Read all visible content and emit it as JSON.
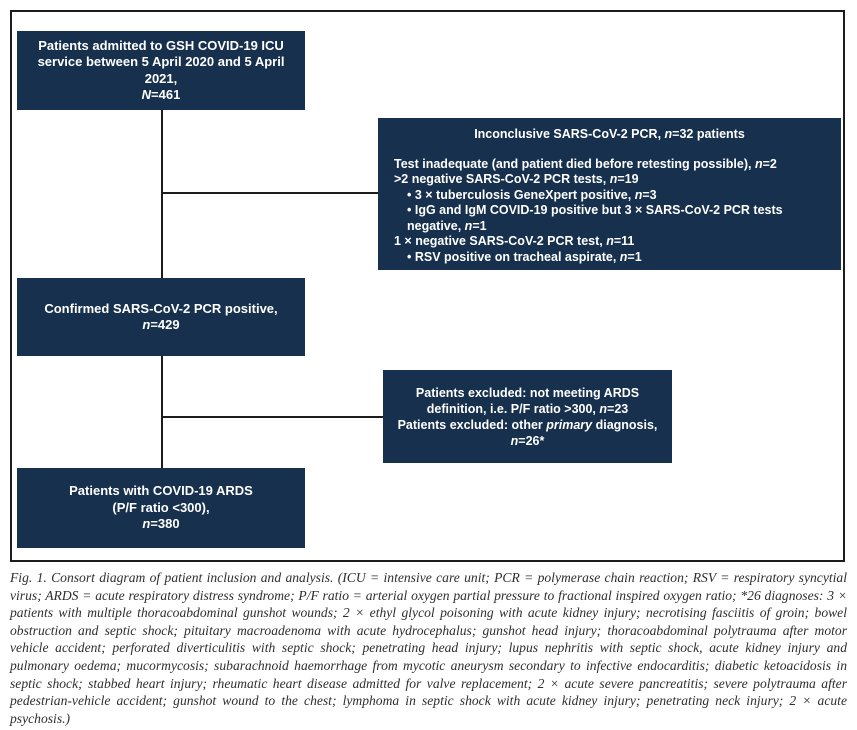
{
  "colors": {
    "box_fill": "#16304d",
    "box_text": "#ffffff",
    "line_color": "#1c1c1c",
    "caption_text": "#2e2e2e"
  },
  "flowchart": {
    "box_admitted": {
      "text_html": "Patients admitted to GSH COVID-19 ICU<br>service between 5 April 2020 and 5 April 2021,<br><i>N</i>=461"
    },
    "box_inconclusive": {
      "title_html": "Inconclusive SARS-CoV-2 PCR, <i>n</i>=32 patients",
      "lines_html": [
        "Test inadequate (and patient died before retesting possible), <i>n</i>=2",
        ">2 negative SARS-CoV-2 PCR tests, <i>n</i>=19",
        "• 3 × tuberculosis GeneXpert positive, <i>n</i>=3",
        "• IgG and IgM COVID-19 positive but 3 × SARS-CoV-2 PCR tests negative, <i>n</i>=1",
        "1 × negative SARS-CoV-2 PCR test, <i>n</i>=11",
        "• RSV positive on tracheal aspirate, <i>n</i>=1"
      ]
    },
    "box_confirmed": {
      "text_html": "Confirmed SARS-CoV-2 PCR positive,<br><i>n</i>=429"
    },
    "box_excluded": {
      "text_html": "Patients excluded: not meeting ARDS<br>definition, i.e. P/F ratio >300, <i>n</i>=23<br>Patients excluded: other <i>primary</i> diagnosis,<br><i>n</i>=26*"
    },
    "box_ards": {
      "text_html": "Patients with COVID-19 ARDS<br>(P/F ratio <300),<br><i>n</i>=380"
    }
  },
  "caption": {
    "text": "Fig. 1. Consort diagram of patient inclusion and analysis. (ICU = intensive care unit; PCR = polymerase chain reaction; RSV = respiratory syncytial virus; ARDS = acute respiratory distress syndrome; P/F ratio = arterial oxygen partial pressure to fractional inspired oxygen ratio; *26 diagnoses: 3 × patients with multiple thoracoabdominal gunshot wounds; 2 × ethyl glycol poisoning with acute kidney injury; necrotising fasciitis of groin; bowel obstruction and septic shock; pituitary macroadenoma with acute hydrocephalus; gunshot head injury; thoracoabdominal polytrauma after motor vehicle accident; perforated diverticulitis with septic shock; penetrating head injury; lupus nephritis with septic shock, acute kidney injury and pulmonary oedema; mucormycosis; subarachnoid haemorrhage from mycotic aneurysm secondary to infective endocarditis; diabetic ketoacidosis in septic shock; stabbed heart injury; rheumatic heart disease admitted for valve replacement; 2 × acute severe pancreatitis; severe polytrauma after pedestrian-vehicle accident; gunshot wound to the chest; lymphoma in septic shock with acute kidney injury; penetrating neck injury; 2 × acute psychosis.)"
  }
}
